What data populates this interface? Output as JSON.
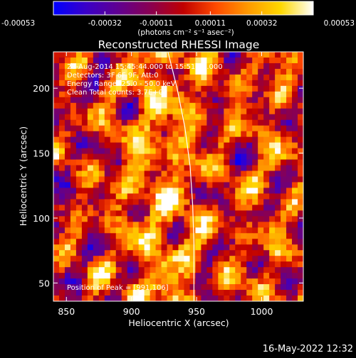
{
  "chart_data": {
    "type": "heatmap",
    "title": "Reconstructed RHESSI Image",
    "xlabel": "Heliocentric X (arcsec)",
    "ylabel": "Heliocentric Y (arcsec)",
    "xlim": [
      840,
      1032
    ],
    "ylim": [
      36,
      228
    ],
    "x_ticks": [
      850,
      900,
      950,
      1000
    ],
    "y_ticks": [
      50,
      100,
      150,
      200
    ],
    "colorbar": {
      "range": [
        -0.00053,
        0.00053
      ],
      "tick_values": [
        -0.00053,
        -0.00032,
        -0.00011,
        0.00011,
        0.00032,
        0.00053
      ],
      "tick_labels": [
        "-0.00053",
        "-0.00032",
        "-0.00011",
        "0.00011",
        "0.00032",
        "0.00053"
      ],
      "units_label": "(photons cm⁻² s⁻¹ asec⁻²)",
      "stops": [
        "#0000ff",
        "#3a00c8",
        "#600090",
        "#8a0050",
        "#c00000",
        "#ff4a00",
        "#ff9a00",
        "#ffd800",
        "#ffffff"
      ]
    },
    "annotations": [
      "28-Aug-2014 15:45:44.000 to 15:51:44.000",
      "Detectors: 3F 6F 9F, Att:0",
      "Energy Range: 25.0 - 50.0 keV",
      "Clean     Total counts: 3.7E+03"
    ],
    "peak_label": "Position of Peak = [991,106]",
    "peak": [
      991,
      106
    ],
    "limb_curve": [
      [
        928,
        228
      ],
      [
        935,
        200
      ],
      [
        941,
        170
      ],
      [
        945,
        140
      ],
      [
        947,
        110
      ],
      [
        948,
        80
      ],
      [
        948,
        50
      ],
      [
        948,
        36
      ]
    ],
    "grid": false,
    "legend": "none"
  },
  "footer": {
    "timestamp": "16-May-2022 12:32"
  }
}
